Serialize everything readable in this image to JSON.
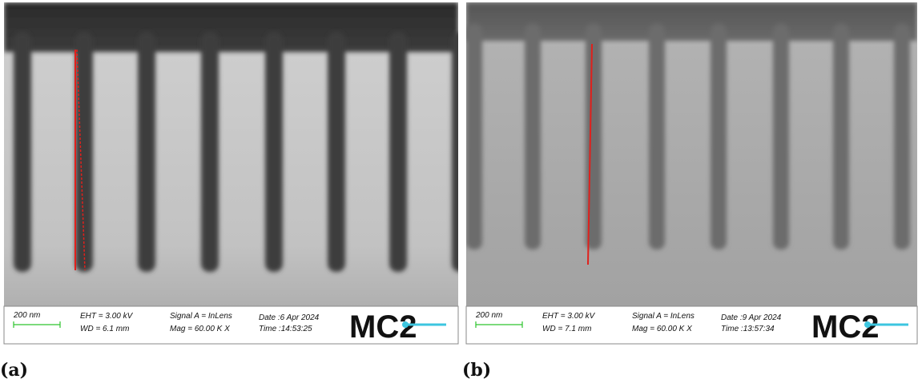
{
  "panels": [
    {
      "label": "(a)",
      "scale_bar": "200 nm",
      "eht": "EHT =  3.00 kV",
      "wd": "WD =  6.1 mm",
      "signal": "Signal A = InLens",
      "mag": "Mag =  60.00 K X",
      "date": "Date :6 Apr 2024",
      "time": "Time :14:53:25",
      "logo": "MC2"
    },
    {
      "label": "(b)",
      "scale_bar": "200 nm",
      "eht": "EHT =  3.00 kV",
      "wd": "WD =  7.1 mm",
      "signal": "Signal A = InLens",
      "mag": "Mag =  60.00 K X",
      "date": "Date :9 Apr 2024",
      "time": "Time :13:57:34",
      "logo": "MC2"
    }
  ]
}
